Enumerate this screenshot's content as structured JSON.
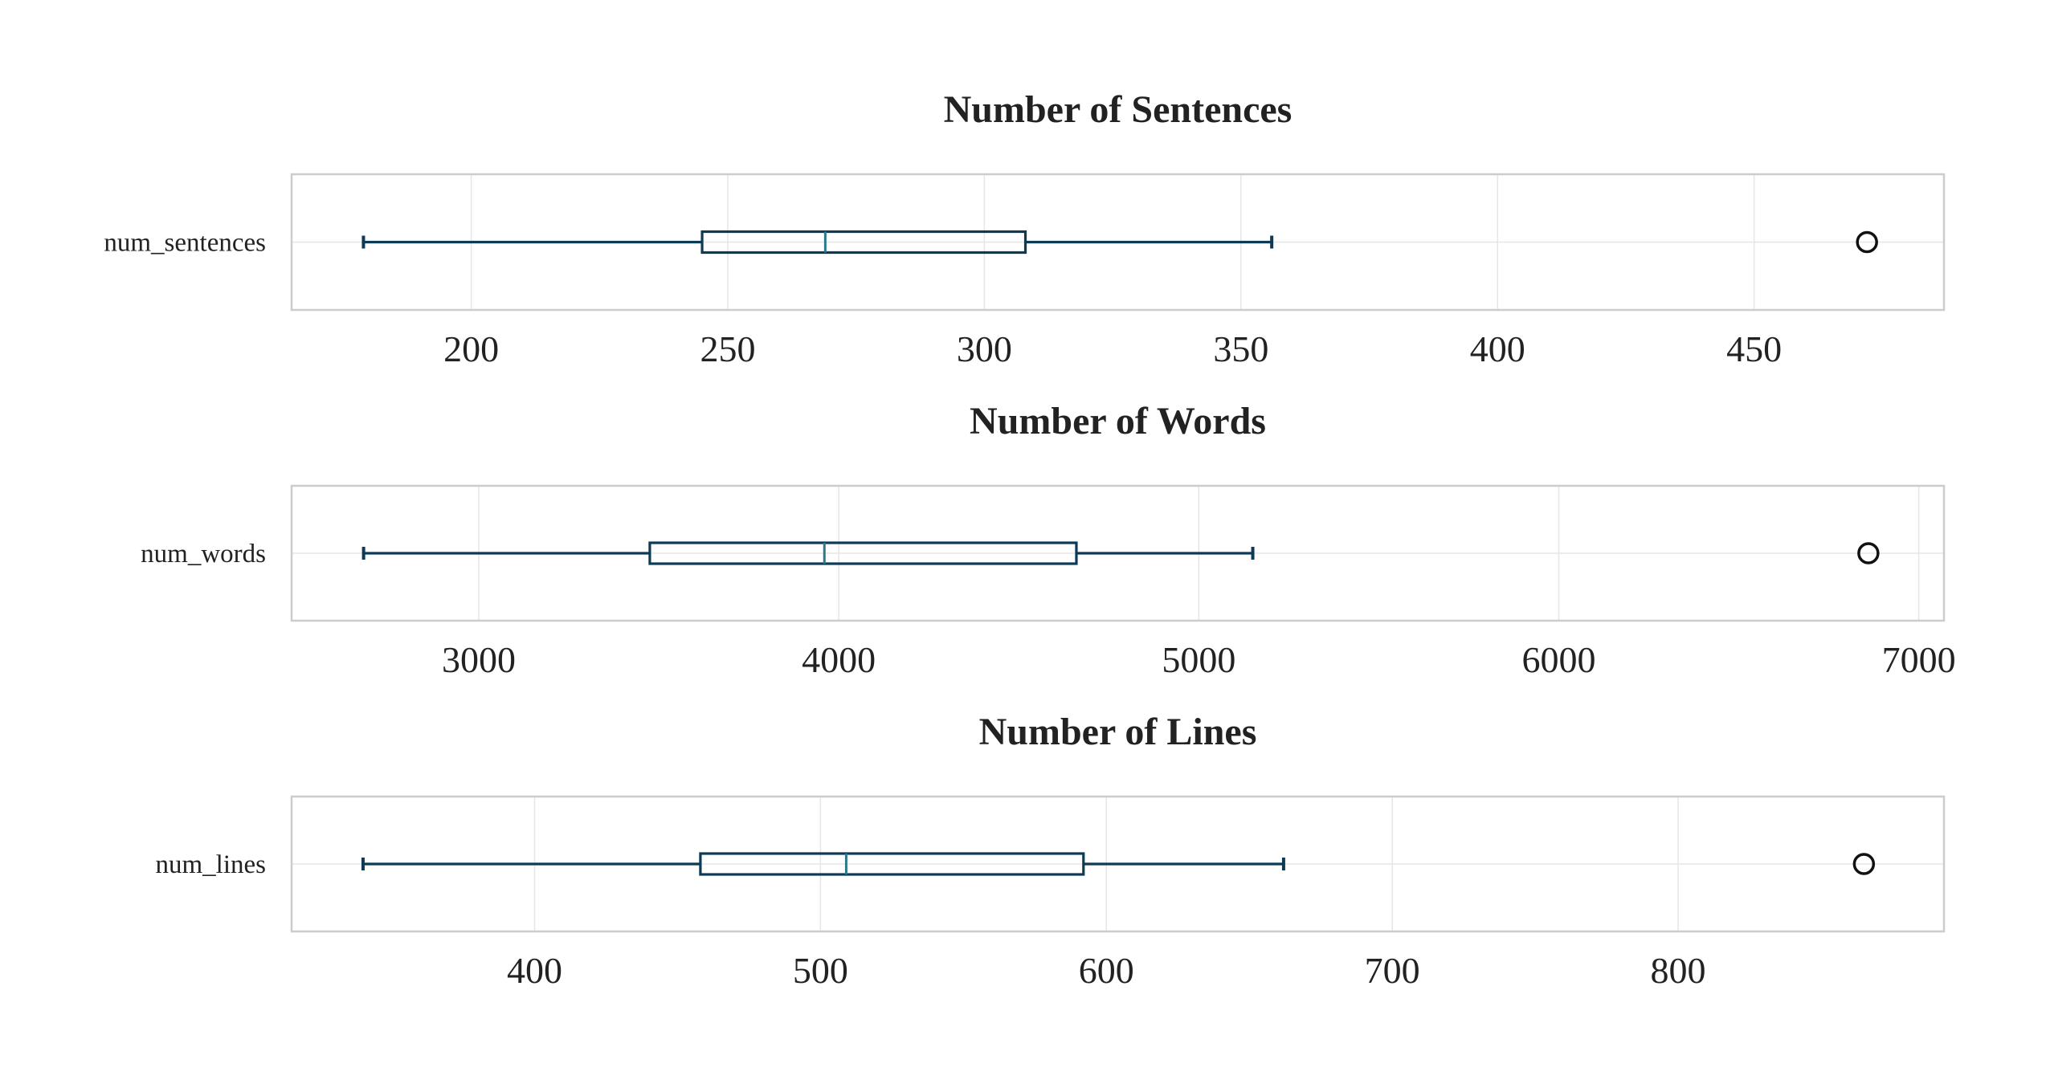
{
  "colors": {
    "box": "#0d3b56",
    "median": "#2a7a8c",
    "flier": "#111111",
    "frame": "#cccccc",
    "grid": "#e6e6e6"
  },
  "chart_data": [
    {
      "type": "box",
      "title": "Number of Sentences",
      "category": "num_sentences",
      "xlim": [
        165,
        487
      ],
      "ticks": [
        200,
        250,
        300,
        350,
        400,
        450
      ],
      "tick_labels": [
        "200",
        "250",
        "300",
        "350",
        "400",
        "450"
      ],
      "min": 179,
      "q1": 245,
      "median": 269,
      "q3": 308,
      "max": 356,
      "outliers": [
        472
      ],
      "grid": true
    },
    {
      "type": "box",
      "title": "Number of Words",
      "category": "num_words",
      "xlim": [
        2480,
        7070
      ],
      "ticks": [
        3000,
        4000,
        5000,
        6000,
        7000
      ],
      "tick_labels": [
        "3000",
        "4000",
        "5000",
        "6000",
        "7000"
      ],
      "min": 2680,
      "q1": 3475,
      "median": 3960,
      "q3": 4660,
      "max": 5150,
      "outliers": [
        6860
      ],
      "grid": true
    },
    {
      "type": "box",
      "title": "Number of Lines",
      "category": "num_lines",
      "xlim": [
        315,
        893
      ],
      "ticks": [
        400,
        500,
        600,
        700,
        800
      ],
      "tick_labels": [
        "400",
        "500",
        "600",
        "700",
        "800"
      ],
      "min": 340,
      "q1": 458,
      "median": 509,
      "q3": 592,
      "max": 662,
      "outliers": [
        865
      ],
      "grid": true
    }
  ]
}
